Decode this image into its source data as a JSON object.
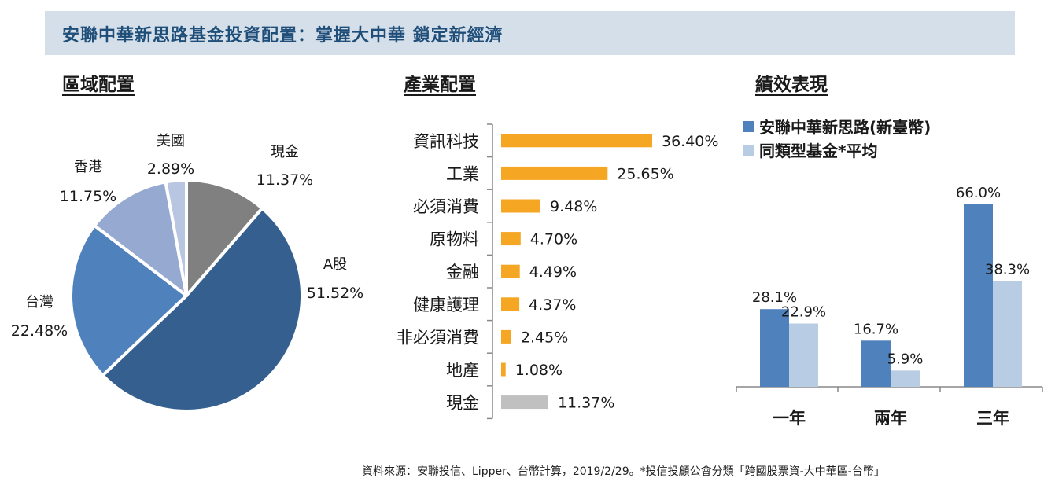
{
  "banner": {
    "title": "安聯中華新思路基金投資配置：掌握大中華 鎖定新經濟"
  },
  "sections": {
    "region": "區域配置",
    "industry": "產業配置",
    "performance": "績效表現"
  },
  "colors": {
    "banner_bg": "#d5dfe9",
    "title": "#1f4e79",
    "bar_orange": "#f5a623",
    "bar_gray": "#c0c0c0",
    "fund": "#4f81bd",
    "peer": "#b8cce4"
  },
  "chart_data": [
    {
      "type": "pie",
      "title": "區域配置",
      "slices": [
        {
          "label": "現金",
          "value": 11.37,
          "display": "11.37%",
          "color": "#808080"
        },
        {
          "label": "A股",
          "value": 51.52,
          "display": "51.52%",
          "color": "#355f8e"
        },
        {
          "label": "台灣",
          "value": 22.48,
          "display": "22.48%",
          "color": "#4f81bd"
        },
        {
          "label": "香港",
          "value": 11.75,
          "display": "11.75%",
          "color": "#95a9d1"
        },
        {
          "label": "美國",
          "value": 2.89,
          "display": "2.89%",
          "color": "#b8c6e2"
        }
      ]
    },
    {
      "type": "bar",
      "orientation": "horizontal",
      "title": "產業配置",
      "categories": [
        "資訊科技",
        "工業",
        "必須消費",
        "原物料",
        "金融",
        "健康護理",
        "非必須消費",
        "地產",
        "現金"
      ],
      "values": [
        36.4,
        25.65,
        9.48,
        4.7,
        4.49,
        4.37,
        2.45,
        1.08,
        11.37
      ],
      "labels": [
        "36.40%",
        "25.65%",
        "9.48%",
        "4.70%",
        "4.49%",
        "4.37%",
        "2.45%",
        "1.08%",
        "11.37%"
      ],
      "colors": [
        "#f5a623",
        "#f5a623",
        "#f5a623",
        "#f5a623",
        "#f5a623",
        "#f5a623",
        "#f5a623",
        "#f5a623",
        "#c0c0c0"
      ]
    },
    {
      "type": "bar",
      "title": "績效表現",
      "categories": [
        "一年",
        "兩年",
        "三年"
      ],
      "series": [
        {
          "name": "安聯中華新思路(新臺幣)",
          "values": [
            28.1,
            16.7,
            66.0
          ],
          "labels": [
            "28.1%",
            "16.7%",
            "66.0%"
          ],
          "color": "#4f81bd"
        },
        {
          "name": "同類型基金*平均",
          "values": [
            22.9,
            5.9,
            38.3
          ],
          "labels": [
            "22.9%",
            "5.9%",
            "38.3%"
          ],
          "color": "#b8cce4"
        }
      ],
      "legend_position": "top-left",
      "ylim": [
        0,
        66.0
      ],
      "grid": false
    }
  ],
  "footer": {
    "source": "資料來源：安聯投信、Lipper、台幣計算，2019/2/29。*投信投顧公會分類「跨國股票資-大中華區-台幣」"
  }
}
